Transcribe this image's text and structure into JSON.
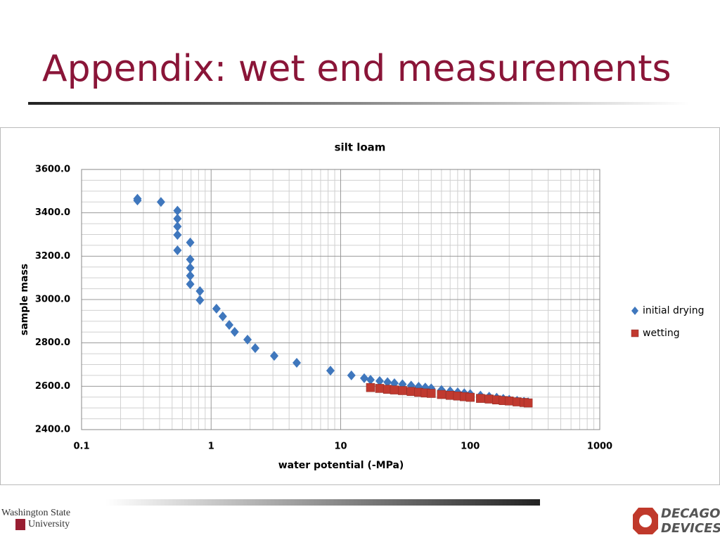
{
  "slide_title": "Appendix: wet end measurements",
  "footer": {
    "left_logo": [
      "Washington State",
      "University"
    ],
    "right_logo": [
      "DECAGON",
      "DEVICES"
    ]
  },
  "chart_data": {
    "type": "scatter",
    "title": "silt loam",
    "x_label": "water potential (-MPa)",
    "y_label": "sample mass",
    "x_scale": "log",
    "grid": true,
    "legend": "right",
    "xlim": [
      0.1,
      1000
    ],
    "xticks": [
      0.1,
      1,
      10,
      100,
      1000
    ],
    "ylim": [
      2400,
      3600
    ],
    "yticks": [
      {
        "value": 2400,
        "label": "2400.0"
      },
      {
        "value": 2600,
        "label": "2600.0"
      },
      {
        "value": 2800,
        "label": "2800.0"
      },
      {
        "value": 3000,
        "label": "3000.0"
      },
      {
        "value": 3200,
        "label": "3200.0"
      },
      {
        "value": 3400,
        "label": "3400.0"
      },
      {
        "value": 3600,
        "label": "3600.0"
      }
    ],
    "series": [
      {
        "name": "initial drying",
        "color": "#3f77bd",
        "marker": "diamond",
        "x": [
          0.27,
          0.27,
          0.41,
          0.55,
          0.55,
          0.55,
          0.55,
          0.55,
          0.69,
          0.69,
          0.69,
          0.69,
          0.69,
          0.82,
          0.82,
          1.1,
          1.23,
          1.38,
          1.52,
          1.91,
          2.19,
          3.07,
          4.58,
          8.34,
          12.1,
          15.2,
          17,
          20,
          23,
          26,
          30,
          35,
          40,
          45,
          50,
          60,
          70,
          80,
          90,
          100,
          120,
          140,
          160,
          180,
          200,
          230,
          260,
          280
        ],
        "values": [
          3465,
          3457,
          3450,
          3410,
          3373,
          3337,
          3298,
          3227,
          3263,
          3185,
          3146,
          3110,
          3071,
          3039,
          2997,
          2958,
          2922,
          2883,
          2851,
          2815,
          2776,
          2740,
          2708,
          2672,
          2650,
          2637,
          2630,
          2624,
          2619,
          2614,
          2609,
          2603,
          2598,
          2594,
          2590,
          2583,
          2577,
          2572,
          2568,
          2564,
          2557,
          2552,
          2547,
          2542,
          2538,
          2533,
          2529,
          2526
        ]
      },
      {
        "name": "wetting",
        "color": "#c0392f",
        "marker": "square",
        "x": [
          17,
          20,
          23,
          26,
          30,
          35,
          40,
          45,
          50,
          60,
          70,
          80,
          90,
          100,
          120,
          140,
          160,
          180,
          200,
          230,
          260,
          280
        ],
        "values": [
          2594,
          2590,
          2586,
          2583,
          2580,
          2576,
          2572,
          2569,
          2567,
          2562,
          2558,
          2555,
          2552,
          2549,
          2544,
          2541,
          2537,
          2534,
          2532,
          2528,
          2525,
          2523
        ]
      }
    ]
  }
}
